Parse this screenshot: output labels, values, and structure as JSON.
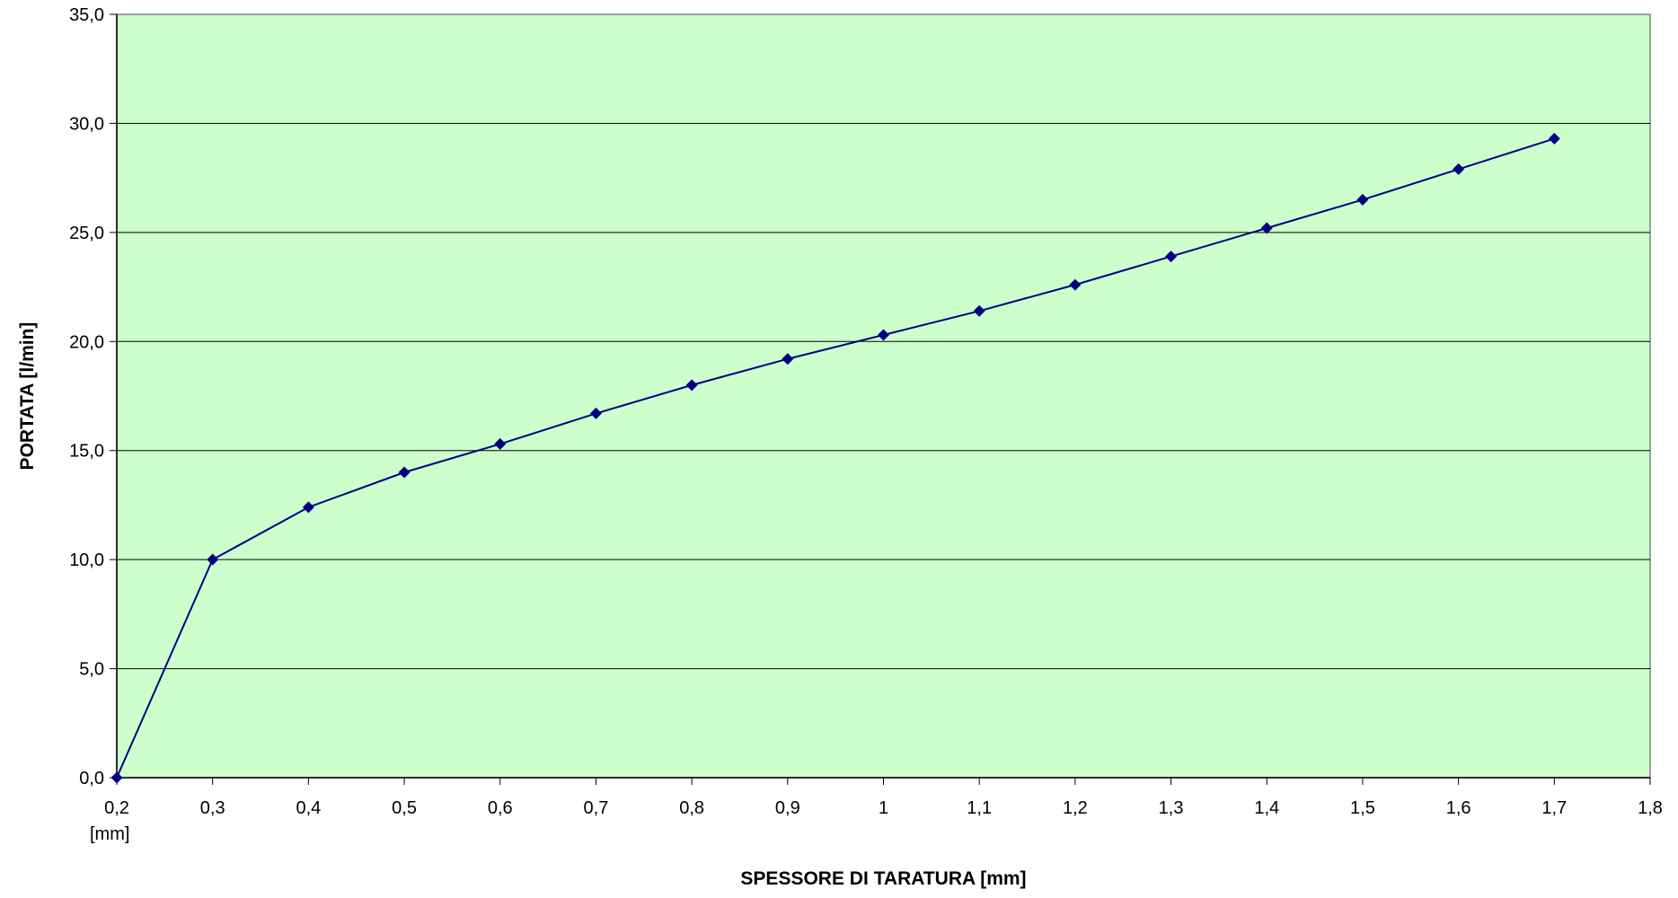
{
  "colors": {
    "plot_background": "#ccffcc",
    "series_line": "#000080",
    "gridline": "#000000",
    "axis": "#808080"
  },
  "chart_data": {
    "type": "line",
    "title": "",
    "xlabel": "SPESSORE DI TARATURA [mm]",
    "ylabel": "PORTATA [l/min]",
    "x_unit_label": "[mm]",
    "xlim": [
      0.2,
      1.8
    ],
    "ylim": [
      0,
      35
    ],
    "x_ticks": [
      "0,2",
      "0,3",
      "0,4",
      "0,5",
      "0,6",
      "0,7",
      "0,8",
      "0,9",
      "1",
      "1,1",
      "1,2",
      "1,3",
      "1,4",
      "1,5",
      "1,6",
      "1,7",
      "1,8"
    ],
    "y_ticks": [
      "0,0",
      "5,0",
      "10,0",
      "15,0",
      "20,0",
      "25,0",
      "30,0",
      "35,0"
    ],
    "grid": {
      "horizontal": true,
      "vertical": false
    },
    "legend": "none",
    "marker": "diamond",
    "series": [
      {
        "x": [
          0.2,
          0.3,
          0.4,
          0.5,
          0.6,
          0.7,
          0.8,
          0.9,
          1.0,
          1.1,
          1.2,
          1.3,
          1.4,
          1.5,
          1.6,
          1.7
        ],
        "values": [
          0.0,
          10.0,
          12.4,
          14.0,
          15.3,
          16.7,
          18.0,
          19.2,
          20.3,
          21.4,
          22.6,
          23.9,
          25.2,
          26.5,
          27.9,
          29.3
        ]
      }
    ]
  }
}
